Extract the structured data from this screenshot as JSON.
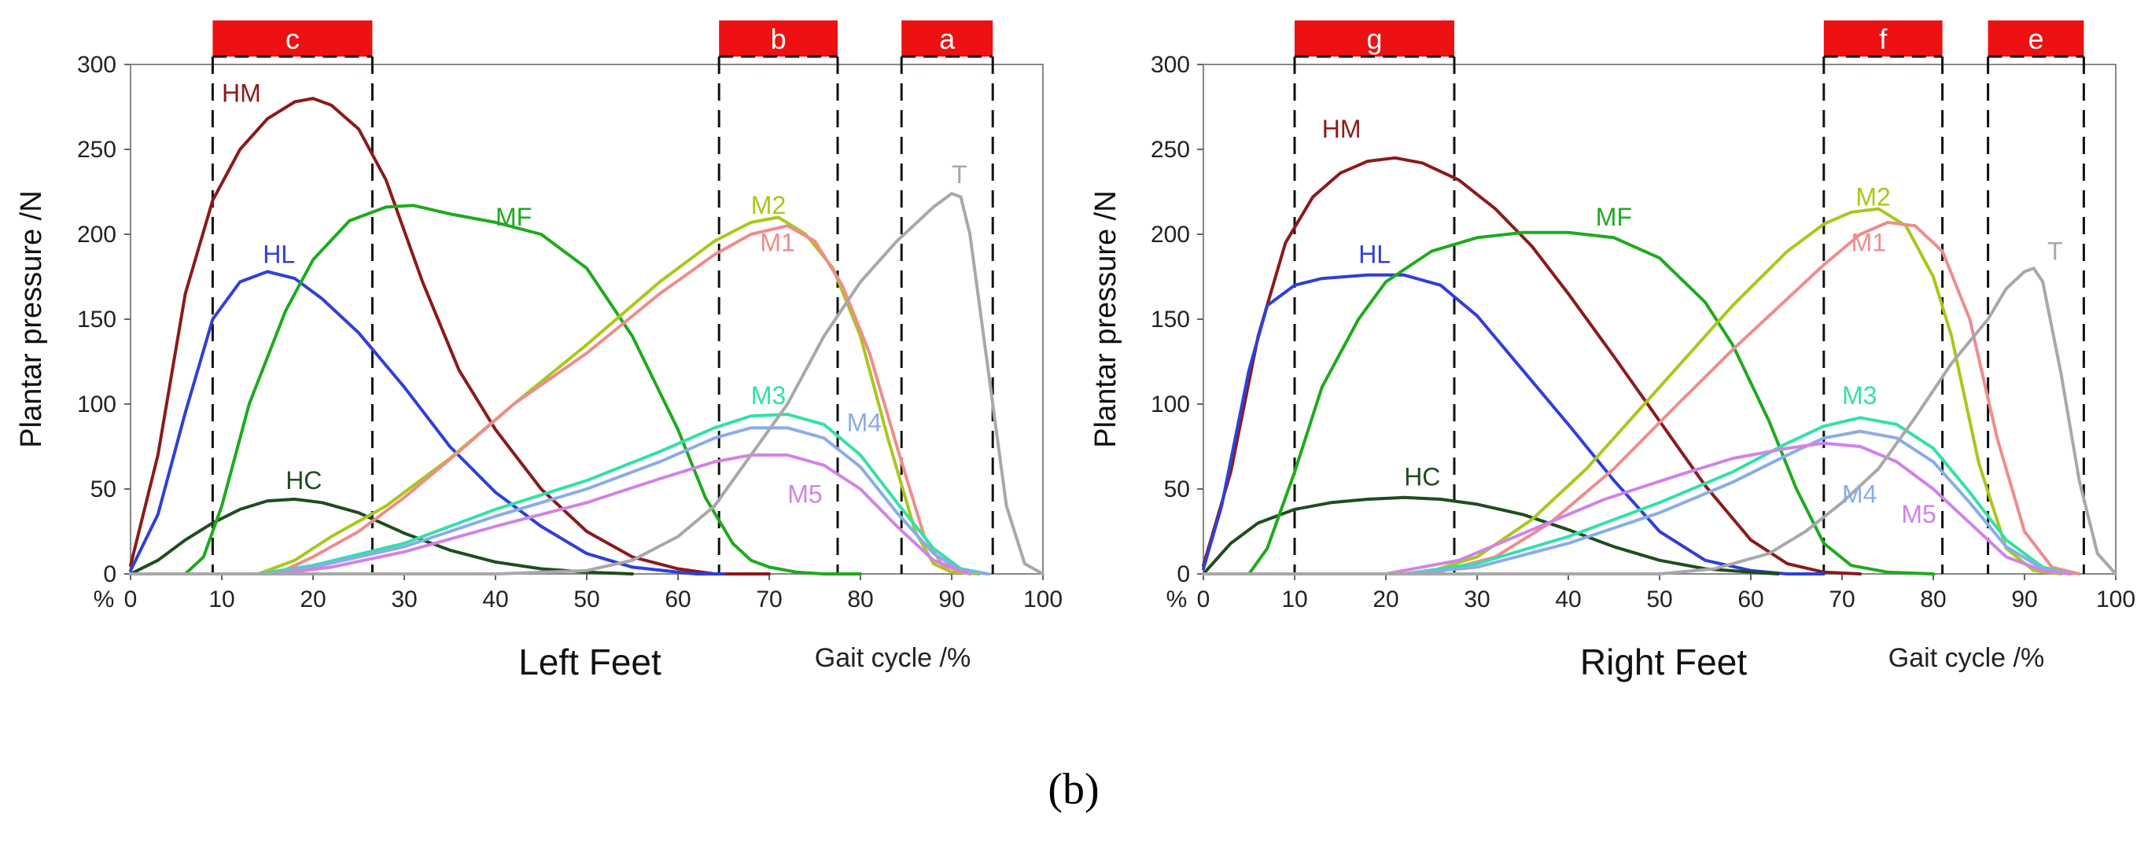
{
  "caption": "(b)",
  "chart_data": [
    {
      "type": "line",
      "title": "Left Feet",
      "xlabel": "Gait cycle  /%",
      "ylabel": "Plantar pressure  /N",
      "unit_marker": "%",
      "xlim": [
        0,
        100
      ],
      "ylim": [
        0,
        300
      ],
      "xticks": [
        "0",
        "10",
        "20",
        "30",
        "40",
        "50",
        "60",
        "70",
        "80",
        "90",
        "100"
      ],
      "yticks": [
        "0",
        "50",
        "100",
        "150",
        "200",
        "250",
        "300"
      ],
      "phases": [
        {
          "label": "c",
          "start": 9,
          "end": 26.5
        },
        {
          "label": "b",
          "start": 64.5,
          "end": 77.5
        },
        {
          "label": "a",
          "start": 84.5,
          "end": 94.5
        }
      ],
      "series": [
        {
          "name": "HM",
          "color": "#8b1a1a",
          "label_at": [
            10,
            278
          ],
          "x": [
            0,
            3,
            6,
            9,
            12,
            15,
            18,
            20,
            22,
            25,
            28,
            32,
            36,
            40,
            45,
            50,
            55,
            60,
            64,
            66,
            70
          ],
          "y": [
            5,
            70,
            165,
            220,
            250,
            268,
            278,
            280,
            276,
            262,
            232,
            172,
            120,
            85,
            50,
            25,
            10,
            3,
            0,
            0,
            0
          ]
        },
        {
          "name": "HL",
          "color": "#2f3fd8",
          "label_at": [
            14.5,
            183
          ],
          "x": [
            0,
            3,
            6,
            9,
            12,
            15,
            18,
            21,
            25,
            30,
            35,
            40,
            45,
            50,
            55,
            60,
            62,
            65
          ],
          "y": [
            2,
            35,
            95,
            150,
            172,
            178,
            174,
            162,
            142,
            110,
            75,
            48,
            28,
            12,
            4,
            1,
            0,
            0
          ]
        },
        {
          "name": "HC",
          "color": "#1e4d1e",
          "label_at": [
            17,
            50
          ],
          "x": [
            0,
            3,
            6,
            9,
            12,
            15,
            18,
            21,
            25,
            30,
            35,
            40,
            45,
            50,
            55
          ],
          "y": [
            0,
            8,
            20,
            30,
            38,
            43,
            44,
            42,
            36,
            24,
            14,
            7,
            3,
            1,
            0
          ]
        },
        {
          "name": "MF",
          "color": "#1eaa1e",
          "label_at": [
            40,
            205
          ],
          "x": [
            0,
            6,
            8,
            10,
            13,
            17,
            20,
            24,
            28,
            31,
            35,
            40,
            45,
            50,
            55,
            60,
            63,
            66,
            68,
            70,
            73,
            76,
            80
          ],
          "y": [
            0,
            0,
            10,
            40,
            100,
            155,
            185,
            208,
            216,
            217,
            212,
            207,
            200,
            180,
            140,
            85,
            45,
            18,
            8,
            4,
            1,
            0,
            0
          ]
        },
        {
          "name": "M2",
          "color": "#a8c81a",
          "label_at": [
            68,
            212
          ],
          "x": [
            0,
            14,
            18,
            22,
            28,
            35,
            42,
            50,
            58,
            64,
            68,
            71,
            74,
            77,
            80,
            83,
            86,
            88,
            90,
            93
          ],
          "y": [
            0,
            0,
            8,
            22,
            40,
            68,
            100,
            135,
            172,
            196,
            207,
            210,
            200,
            180,
            140,
            80,
            25,
            6,
            1,
            0
          ]
        },
        {
          "name": "M1",
          "color": "#ef8c8c",
          "label_at": [
            69,
            190
          ],
          "x": [
            0,
            16,
            20,
            25,
            30,
            36,
            42,
            50,
            58,
            64,
            68,
            72,
            75,
            78,
            81,
            84,
            87,
            89,
            92
          ],
          "y": [
            0,
            0,
            10,
            25,
            45,
            72,
            100,
            130,
            165,
            188,
            200,
            205,
            196,
            170,
            130,
            75,
            22,
            5,
            0
          ]
        },
        {
          "name": "M3",
          "color": "#33e0a8",
          "label_at": [
            68,
            100
          ],
          "x": [
            0,
            14,
            20,
            30,
            40,
            50,
            58,
            64,
            68,
            72,
            76,
            80,
            84,
            88,
            91,
            94
          ],
          "y": [
            0,
            0,
            5,
            18,
            38,
            55,
            72,
            86,
            93,
            94,
            88,
            70,
            42,
            15,
            3,
            0
          ]
        },
        {
          "name": "M4",
          "color": "#8aace8",
          "label_at": [
            78.5,
            84
          ],
          "x": [
            0,
            15,
            20,
            30,
            40,
            50,
            58,
            64,
            68,
            72,
            76,
            80,
            84,
            88,
            91,
            94
          ],
          "y": [
            0,
            0,
            4,
            16,
            34,
            50,
            66,
            80,
            86,
            86,
            80,
            63,
            36,
            12,
            2,
            0
          ]
        },
        {
          "name": "M5",
          "color": "#d282e6",
          "label_at": [
            72,
            42
          ],
          "x": [
            0,
            16,
            22,
            30,
            40,
            50,
            58,
            64,
            68,
            72,
            76,
            80,
            84,
            88,
            92
          ],
          "y": [
            0,
            0,
            4,
            13,
            28,
            42,
            56,
            66,
            70,
            70,
            64,
            50,
            28,
            8,
            0
          ]
        },
        {
          "name": "T",
          "color": "#a8a8a8",
          "label_at": [
            90,
            230
          ],
          "x": [
            0,
            40,
            50,
            55,
            60,
            64,
            68,
            72,
            76,
            80,
            84,
            86,
            88,
            90,
            91,
            92,
            94,
            96,
            98,
            100
          ],
          "y": [
            0,
            0,
            2,
            8,
            22,
            40,
            70,
            100,
            140,
            172,
            196,
            206,
            216,
            224,
            222,
            200,
            120,
            40,
            6,
            0
          ]
        }
      ]
    },
    {
      "type": "line",
      "title": "Right Feet",
      "xlabel": "Gait cycle  /%",
      "ylabel": "Plantar pressure  /N",
      "unit_marker": "%",
      "xlim": [
        0,
        100
      ],
      "ylim": [
        0,
        300
      ],
      "xticks": [
        "0",
        "10",
        "20",
        "30",
        "40",
        "50",
        "60",
        "70",
        "80",
        "90",
        "100"
      ],
      "yticks": [
        "0",
        "50",
        "100",
        "150",
        "200",
        "250",
        "300"
      ],
      "phases": [
        {
          "label": "g",
          "start": 10,
          "end": 27.5
        },
        {
          "label": "f",
          "start": 68,
          "end": 81
        },
        {
          "label": "e",
          "start": 86,
          "end": 96.5
        }
      ],
      "series": [
        {
          "name": "HM",
          "color": "#8b1a1a",
          "label_at": [
            13,
            257
          ],
          "x": [
            0,
            3,
            6,
            9,
            12,
            15,
            18,
            21,
            24,
            28,
            32,
            36,
            40,
            45,
            50,
            55,
            60,
            64,
            68,
            72
          ],
          "y": [
            5,
            60,
            140,
            195,
            222,
            236,
            243,
            245,
            242,
            232,
            215,
            193,
            165,
            128,
            90,
            52,
            20,
            6,
            1,
            0
          ]
        },
        {
          "name": "HL",
          "color": "#2f3fd8",
          "label_at": [
            17,
            183
          ],
          "x": [
            0,
            2,
            5,
            7,
            10,
            13,
            18,
            22,
            26,
            30,
            35,
            40,
            45,
            50,
            55,
            60,
            64,
            68
          ],
          "y": [
            3,
            40,
            120,
            158,
            170,
            174,
            176,
            176,
            170,
            152,
            120,
            88,
            55,
            25,
            8,
            2,
            0,
            0
          ]
        },
        {
          "name": "HC",
          "color": "#1e4d1e",
          "label_at": [
            22,
            52
          ],
          "x": [
            0,
            3,
            6,
            10,
            14,
            18,
            22,
            26,
            30,
            35,
            40,
            45,
            50,
            55,
            60,
            63
          ],
          "y": [
            0,
            18,
            30,
            38,
            42,
            44,
            45,
            44,
            41,
            35,
            26,
            16,
            8,
            3,
            1,
            0
          ]
        },
        {
          "name": "MF",
          "color": "#1eaa1e",
          "label_at": [
            43,
            205
          ],
          "x": [
            0,
            5,
            7,
            10,
            13,
            17,
            20,
            25,
            30,
            35,
            40,
            45,
            50,
            55,
            58,
            62,
            65,
            68,
            71,
            75,
            80
          ],
          "y": [
            0,
            0,
            15,
            60,
            110,
            150,
            172,
            190,
            198,
            201,
            201,
            198,
            186,
            160,
            135,
            90,
            50,
            18,
            5,
            1,
            0
          ]
        },
        {
          "name": "M2",
          "color": "#a8c81a",
          "label_at": [
            71.5,
            217
          ],
          "x": [
            0,
            24,
            30,
            36,
            42,
            50,
            58,
            64,
            68,
            71,
            74,
            77,
            80,
            82,
            85,
            88,
            91,
            94
          ],
          "y": [
            0,
            0,
            10,
            32,
            62,
            110,
            158,
            190,
            206,
            213,
            215,
            205,
            175,
            140,
            65,
            15,
            2,
            0
          ]
        },
        {
          "name": "M1",
          "color": "#ef8c8c",
          "label_at": [
            71,
            190
          ],
          "x": [
            0,
            25,
            32,
            38,
            45,
            52,
            58,
            64,
            68,
            72,
            75,
            78,
            81,
            84,
            87,
            90,
            93,
            96
          ],
          "y": [
            0,
            0,
            10,
            30,
            62,
            100,
            132,
            162,
            182,
            200,
            207,
            205,
            190,
            150,
            80,
            25,
            4,
            0
          ]
        },
        {
          "name": "M3",
          "color": "#33e0a8",
          "label_at": [
            70,
            100
          ],
          "x": [
            0,
            22,
            30,
            40,
            50,
            58,
            64,
            68,
            72,
            76,
            80,
            84,
            88,
            92,
            95
          ],
          "y": [
            0,
            0,
            6,
            22,
            42,
            60,
            77,
            87,
            92,
            88,
            74,
            48,
            20,
            4,
            0
          ]
        },
        {
          "name": "M4",
          "color": "#8aace8",
          "label_at": [
            70,
            42
          ],
          "x": [
            0,
            22,
            30,
            40,
            50,
            58,
            64,
            68,
            72,
            76,
            80,
            84,
            88,
            92,
            95
          ],
          "y": [
            0,
            0,
            4,
            18,
            36,
            54,
            70,
            80,
            84,
            80,
            66,
            42,
            16,
            3,
            0
          ]
        },
        {
          "name": "M5",
          "color": "#d282e6",
          "label_at": [
            76.5,
            30
          ],
          "x": [
            0,
            20,
            28,
            36,
            44,
            52,
            58,
            64,
            68,
            72,
            76,
            80,
            84,
            88,
            92,
            95
          ],
          "y": [
            0,
            0,
            8,
            26,
            44,
            58,
            68,
            74,
            77,
            75,
            66,
            50,
            30,
            10,
            2,
            0
          ]
        },
        {
          "name": "T",
          "color": "#a8a8a8",
          "label_at": [
            92.5,
            185
          ],
          "x": [
            0,
            50,
            56,
            62,
            66,
            70,
            74,
            78,
            82,
            86,
            88,
            90,
            91,
            92,
            94,
            96,
            98,
            100
          ],
          "y": [
            0,
            0,
            3,
            12,
            25,
            42,
            62,
            92,
            124,
            150,
            168,
            178,
            180,
            172,
            118,
            55,
            12,
            0
          ]
        }
      ]
    }
  ]
}
